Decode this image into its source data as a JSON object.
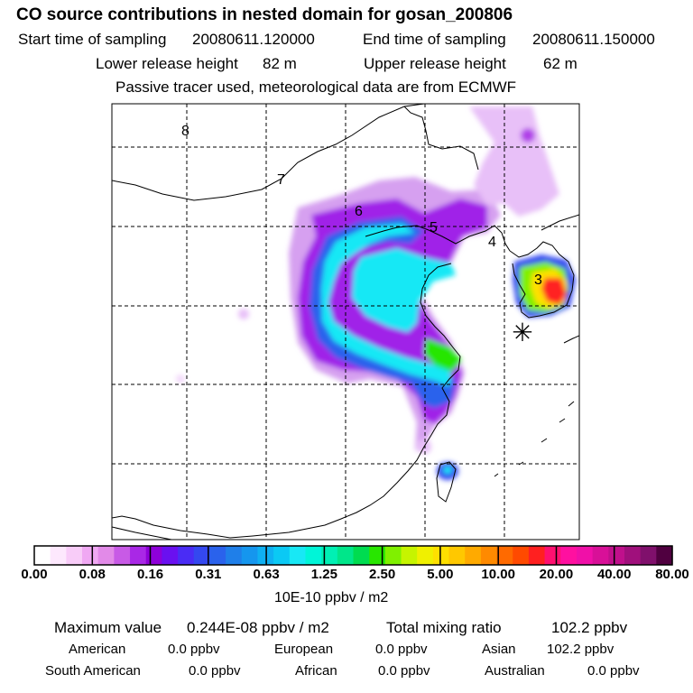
{
  "title": "CO  source contributions in nested domain for gosan_200806",
  "sampling": {
    "start_label": "Start time of sampling",
    "start_value": "20080611.120000",
    "end_label": "End time of sampling",
    "end_value": "20080611.150000"
  },
  "release": {
    "lower_label": "Lower release height",
    "lower_value": "82 m",
    "upper_label": "Upper release height",
    "upper_value": "62 m"
  },
  "subtitle": "Passive tracer used, meteorological data are from ECMWF",
  "map": {
    "markers": [
      "8",
      "7",
      "6",
      "5",
      "4",
      "3"
    ],
    "receptor_symbol": "✳"
  },
  "colorbar": {
    "tick_labels": [
      "0.00",
      "0.08",
      "0.16",
      "0.31",
      "0.63",
      "1.25",
      "2.50",
      "5.00",
      "10.00",
      "20.00",
      "40.00",
      "80.00"
    ],
    "unit": "10E-10 ppbv / m2",
    "colors": [
      "#ffffff",
      "#fde8fd",
      "#f8ccf8",
      "#f0a8f3",
      "#e28ae8",
      "#c85ae6",
      "#a928e6",
      "#8e00d9",
      "#6a10f0",
      "#4a2cf5",
      "#3448f0",
      "#2a62ec",
      "#1f7fe9",
      "#1596ee",
      "#0fb0f2",
      "#0bc9f4",
      "#18e8f5",
      "#00f5d8",
      "#00f0b4",
      "#00e68a",
      "#00dc50",
      "#28e600",
      "#80f000",
      "#c6f400",
      "#f0f000",
      "#ffe000",
      "#ffc800",
      "#ffaa00",
      "#ff8a00",
      "#ff6a00",
      "#ff4a00",
      "#ff2020",
      "#ff1070",
      "#ff10a0",
      "#f010a8",
      "#d81098",
      "#c0108c",
      "#a0107c",
      "#80106c",
      "#500040"
    ]
  },
  "stats": {
    "max_label": "Maximum value",
    "max_value": "0.244E-08 ppbv / m2",
    "total_label": "Total mixing ratio",
    "total_value": "102.2 ppbv"
  },
  "regions": [
    {
      "name": "American",
      "value": "0.0 ppbv"
    },
    {
      "name": "European",
      "value": "0.0 ppbv"
    },
    {
      "name": "Asian",
      "value": "102.2 ppbv"
    },
    {
      "name": "South American",
      "value": "0.0 ppbv"
    },
    {
      "name": "African",
      "value": "0.0 ppbv"
    },
    {
      "name": "Australian",
      "value": "0.0 ppbv"
    }
  ]
}
